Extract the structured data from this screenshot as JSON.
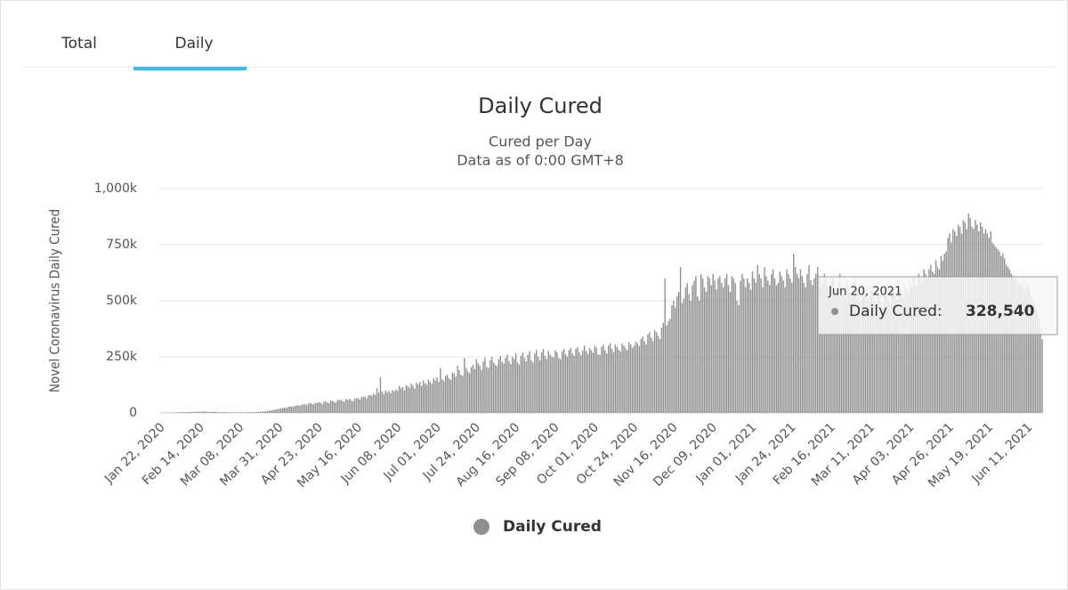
{
  "tabs": [
    "Total",
    "Daily"
  ],
  "chart_data": {
    "type": "bar",
    "title": "Daily Cured",
    "subtitle": [
      "Cured per Day",
      "Data as of 0:00 GMT+8"
    ],
    "y_label": "Novel Coronavirus Daily Cured",
    "ylim": [
      0,
      1000000
    ],
    "yticks": [
      0,
      {
        "value": 250000,
        "label": "250k"
      },
      {
        "value": 500000,
        "label": "500k"
      },
      {
        "value": 750000,
        "label": "750k"
      },
      {
        "value": 1000000,
        "label": "1,000k"
      }
    ],
    "grid": true,
    "tooltip": {
      "date": "Jun 20, 2021",
      "label": "Daily Cured:",
      "value": "328,540"
    },
    "categories": [
      "Jan 22, 2020",
      null,
      null,
      null,
      null,
      null,
      null,
      null,
      null,
      null,
      null,
      null,
      null,
      null,
      null,
      null,
      null,
      null,
      null,
      null,
      null,
      null,
      null,
      "Feb 14, 2020",
      null,
      null,
      null,
      null,
      null,
      null,
      null,
      null,
      null,
      null,
      null,
      null,
      null,
      null,
      null,
      null,
      null,
      null,
      null,
      null,
      null,
      null,
      "Mar 08, 2020",
      null,
      null,
      null,
      null,
      null,
      null,
      null,
      null,
      null,
      null,
      null,
      null,
      null,
      null,
      null,
      null,
      null,
      null,
      null,
      null,
      null,
      null,
      "Mar 31, 2020",
      null,
      null,
      null,
      null,
      null,
      null,
      null,
      null,
      null,
      null,
      null,
      null,
      null,
      null,
      null,
      null,
      null,
      null,
      null,
      null,
      null,
      null,
      "Apr 23, 2020",
      null,
      null,
      null,
      null,
      null,
      null,
      null,
      null,
      null,
      null,
      null,
      null,
      null,
      null,
      null,
      null,
      null,
      null,
      null,
      null,
      null,
      null,
      "May 16, 2020",
      null,
      null,
      null,
      null,
      null,
      null,
      null,
      null,
      null,
      null,
      null,
      null,
      null,
      null,
      null,
      null,
      null,
      null,
      null,
      null,
      null,
      null,
      "Jun 08, 2020",
      null,
      null,
      null,
      null,
      null,
      null,
      null,
      null,
      null,
      null,
      null,
      null,
      null,
      null,
      null,
      null,
      null,
      null,
      null,
      null,
      null,
      null,
      "Jul 01, 2020",
      null,
      null,
      null,
      null,
      null,
      null,
      null,
      null,
      null,
      null,
      null,
      null,
      null,
      null,
      null,
      null,
      null,
      null,
      null,
      null,
      null,
      null,
      "Jul 24, 2020",
      null,
      null,
      null,
      null,
      null,
      null,
      null,
      null,
      null,
      null,
      null,
      null,
      null,
      null,
      null,
      null,
      null,
      null,
      null,
      null,
      null,
      null,
      "Aug 16, 2020",
      null,
      null,
      null,
      null,
      null,
      null,
      null,
      null,
      null,
      null,
      null,
      null,
      null,
      null,
      null,
      null,
      null,
      null,
      null,
      null,
      null,
      null,
      "Sep 08, 2020",
      null,
      null,
      null,
      null,
      null,
      null,
      null,
      null,
      null,
      null,
      null,
      null,
      null,
      null,
      null,
      null,
      null,
      null,
      null,
      null,
      null,
      null,
      "Oct 01, 2020",
      null,
      null,
      null,
      null,
      null,
      null,
      null,
      null,
      null,
      null,
      null,
      null,
      null,
      null,
      null,
      null,
      null,
      null,
      null,
      null,
      null,
      null,
      "Oct 24, 2020",
      null,
      null,
      null,
      null,
      null,
      null,
      null,
      null,
      null,
      null,
      null,
      null,
      null,
      null,
      null,
      null,
      null,
      null,
      null,
      null,
      null,
      null,
      "Nov 16, 2020",
      null,
      null,
      null,
      null,
      null,
      null,
      null,
      null,
      null,
      null,
      null,
      null,
      null,
      null,
      null,
      null,
      null,
      null,
      null,
      null,
      null,
      null,
      "Dec 09, 2020",
      null,
      null,
      null,
      null,
      null,
      null,
      null,
      null,
      null,
      null,
      null,
      null,
      null,
      null,
      null,
      null,
      null,
      null,
      null,
      null,
      null,
      null,
      "Jan 01, 2021",
      null,
      null,
      null,
      null,
      null,
      null,
      null,
      null,
      null,
      null,
      null,
      null,
      null,
      null,
      null,
      null,
      null,
      null,
      null,
      null,
      null,
      null,
      "Jan 24, 2021",
      null,
      null,
      null,
      null,
      null,
      null,
      null,
      null,
      null,
      null,
      null,
      null,
      null,
      null,
      null,
      null,
      null,
      null,
      null,
      null,
      null,
      null,
      "Feb 16, 2021",
      null,
      null,
      null,
      null,
      null,
      null,
      null,
      null,
      null,
      null,
      null,
      null,
      null,
      null,
      null,
      null,
      null,
      null,
      null,
      null,
      null,
      null,
      "Mar 11, 2021",
      null,
      null,
      null,
      null,
      null,
      null,
      null,
      null,
      null,
      null,
      null,
      null,
      null,
      null,
      null,
      null,
      null,
      null,
      null,
      null,
      null,
      null,
      "Apr 03, 2021",
      null,
      null,
      null,
      null,
      null,
      null,
      null,
      null,
      null,
      null,
      null,
      null,
      null,
      null,
      null,
      null,
      null,
      null,
      null,
      null,
      null,
      null,
      "Apr 26, 2021",
      null,
      null,
      null,
      null,
      null,
      null,
      null,
      null,
      null,
      null,
      null,
      null,
      null,
      null,
      null,
      null,
      null,
      null,
      null,
      null,
      null,
      null,
      "May 19, 2021",
      null,
      null,
      null,
      null,
      null,
      null,
      null,
      null,
      null,
      null,
      null,
      null,
      null,
      null,
      null,
      null,
      null,
      null,
      null,
      null,
      null,
      null,
      "Jun 11, 2021",
      null,
      null,
      null,
      null,
      null,
      null,
      null,
      null,
      null
    ],
    "series": [
      {
        "name": "Daily Cured",
        "color": "#8f8f8f",
        "values": [
          0,
          0,
          0,
          0,
          1000,
          1000,
          1000,
          1000,
          2000,
          2000,
          2000,
          3000,
          3000,
          3000,
          3000,
          3000,
          4000,
          3000,
          4000,
          4000,
          5000,
          4000,
          5000,
          5000,
          6000,
          5000,
          6000,
          7000,
          5000,
          4000,
          4000,
          5000,
          6000,
          4000,
          4000,
          3000,
          3000,
          3000,
          4000,
          3000,
          2000,
          3000,
          2000,
          2000,
          2000,
          2000,
          2000,
          2000,
          3000,
          2000,
          2000,
          3000,
          3000,
          3000,
          4000,
          3000,
          4000,
          4000,
          5000,
          5000,
          6000,
          7000,
          7000,
          9000,
          10000,
          11000,
          13000,
          14000,
          16000,
          17000,
          19000,
          21000,
          22000,
          24000,
          22000,
          26000,
          28000,
          29000,
          27000,
          31000,
          33000,
          35000,
          32000,
          36000,
          38000,
          40000,
          34000,
          42000,
          44000,
          41000,
          38000,
          45000,
          44000,
          48000,
          46000,
          40000,
          50000,
          52000,
          47000,
          43000,
          55000,
          54000,
          49000,
          46000,
          58000,
          56000,
          60000,
          52000,
          50000,
          62000,
          58000,
          64000,
          55000,
          52000,
          66000,
          63000,
          68000,
          60000,
          72000,
          70000,
          74000,
          65000,
          78000,
          80000,
          76000,
          85000,
          82000,
          110000,
          90000,
          160000,
          95000,
          84000,
          100000,
          92000,
          98000,
          88000,
          102000,
          96000,
          105000,
          98000,
          120000,
          110000,
          115000,
          100000,
          125000,
          118000,
          112000,
          130000,
          122000,
          108000,
          135000,
          128000,
          138000,
          120000,
          145000,
          132000,
          125000,
          150000,
          140000,
          130000,
          155000,
          145000,
          160000,
          138000,
          200000,
          150000,
          142000,
          165000,
          170000,
          155000,
          148000,
          180000,
          175000,
          162000,
          210000,
          190000,
          170000,
          165000,
          245000,
          200000,
          185000,
          178000,
          205000,
          215000,
          195000,
          240000,
          220000,
          210000,
          190000,
          230000,
          245000,
          205000,
          200000,
          235000,
          250000,
          225000,
          215000,
          210000,
          240000,
          255000,
          228000,
          220000,
          245000,
          260000,
          230000,
          218000,
          250000,
          240000,
          265000,
          225000,
          215000,
          255000,
          270000,
          245000,
          230000,
          260000,
          275000,
          235000,
          225000,
          265000,
          280000,
          250000,
          235000,
          270000,
          285000,
          255000,
          240000,
          275000,
          260000,
          250000,
          248000,
          280000,
          270000,
          245000,
          240000,
          275000,
          285000,
          262000,
          250000,
          280000,
          290000,
          265000,
          255000,
          285000,
          295000,
          270000,
          258000,
          280000,
          300000,
          275000,
          262000,
          290000,
          280000,
          268000,
          300000,
          290000,
          262000,
          258000,
          295000,
          305000,
          280000,
          265000,
          300000,
          310000,
          285000,
          270000,
          305000,
          295000,
          282000,
          275000,
          310000,
          300000,
          288000,
          280000,
          315000,
          305000,
          290000,
          300000,
          318000,
          310000,
          298000,
          330000,
          340000,
          320000,
          305000,
          350000,
          360000,
          335000,
          320000,
          370000,
          360000,
          345000,
          330000,
          380000,
          400000,
          600000,
          390000,
          410000,
          420000,
          480000,
          500000,
          470000,
          520000,
          540000,
          650000,
          490000,
          510000,
          560000,
          580000,
          530000,
          500000,
          570000,
          590000,
          610000,
          520000,
          500000,
          620000,
          600000,
          560000,
          540000,
          610000,
          600000,
          570000,
          620000,
          590000,
          550000,
          600000,
          610000,
          580000,
          560000,
          600000,
          620000,
          570000,
          540000,
          610000,
          600000,
          580000,
          500000,
          480000,
          590000,
          620000,
          600000,
          560000,
          600000,
          580000,
          550000,
          630000,
          600000,
          580000,
          660000,
          620000,
          600000,
          560000,
          650000,
          610000,
          590000,
          570000,
          620000,
          640000,
          600000,
          570000,
          580000,
          630000,
          610000,
          590000,
          560000,
          640000,
          620000,
          600000,
          580000,
          710000,
          650000,
          620000,
          600000,
          640000,
          610000,
          580000,
          560000,
          620000,
          660000,
          590000,
          570000,
          600000,
          620000,
          650000,
          600000,
          560000,
          580000,
          620000,
          600000,
          570000,
          540000,
          590000,
          600000,
          560000,
          540000,
          580000,
          620000,
          570000,
          530000,
          510000,
          590000,
          560000,
          540000,
          520000,
          580000,
          600000,
          550000,
          520000,
          500000,
          570000,
          560000,
          530000,
          510000,
          500000,
          560000,
          540000,
          510000,
          490000,
          550000,
          520000,
          500000,
          480000,
          540000,
          560000,
          510000,
          490000,
          550000,
          540000,
          520000,
          500000,
          560000,
          550000,
          530000,
          510000,
          570000,
          550000,
          540000,
          580000,
          560000,
          600000,
          570000,
          560000,
          620000,
          600000,
          580000,
          640000,
          620000,
          600000,
          640000,
          660000,
          630000,
          620000,
          680000,
          650000,
          640000,
          700000,
          680000,
          710000,
          720000,
          780000,
          800000,
          760000,
          820000,
          810000,
          790000,
          840000,
          830000,
          800000,
          860000,
          850000,
          820000,
          890000,
          870000,
          830000,
          820000,
          860000,
          840000,
          810000,
          850000,
          830000,
          800000,
          820000,
          800000,
          780000,
          810000,
          760000,
          750000,
          740000,
          730000,
          720000,
          700000,
          710000,
          690000,
          660000,
          650000,
          640000,
          620000,
          610000,
          600000,
          590000,
          580000,
          570000,
          580000,
          560000,
          550000,
          570000,
          560000,
          540000,
          520000,
          500000,
          480000,
          450000,
          420000,
          380000,
          328540
        ]
      }
    ]
  }
}
